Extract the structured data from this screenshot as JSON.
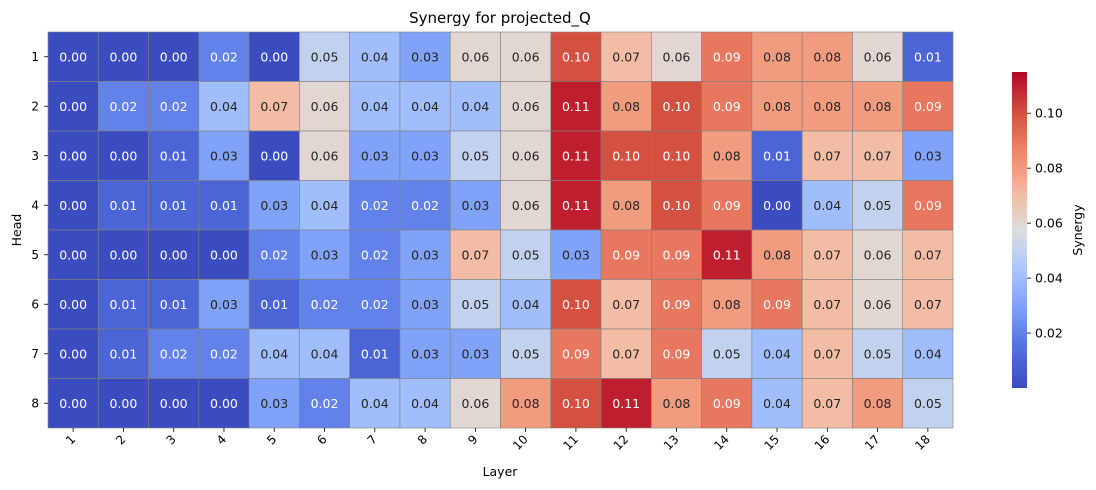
{
  "chart_data": {
    "type": "heatmap",
    "title": "Synergy for projected_Q",
    "xlabel": "Layer",
    "ylabel": "Head",
    "x_categories": [
      "1",
      "2",
      "3",
      "4",
      "5",
      "6",
      "7",
      "8",
      "9",
      "10",
      "11",
      "12",
      "13",
      "14",
      "15",
      "16",
      "17",
      "18"
    ],
    "y_categories": [
      "1",
      "2",
      "3",
      "4",
      "5",
      "6",
      "7",
      "8"
    ],
    "values": [
      [
        0.0,
        0.0,
        0.0,
        0.02,
        0.0,
        0.05,
        0.04,
        0.03,
        0.06,
        0.06,
        0.1,
        0.07,
        0.06,
        0.09,
        0.08,
        0.08,
        0.06,
        0.01
      ],
      [
        0.0,
        0.02,
        0.02,
        0.04,
        0.07,
        0.06,
        0.04,
        0.04,
        0.04,
        0.06,
        0.11,
        0.08,
        0.1,
        0.09,
        0.08,
        0.08,
        0.08,
        0.09
      ],
      [
        0.0,
        0.0,
        0.01,
        0.03,
        0.0,
        0.06,
        0.03,
        0.03,
        0.05,
        0.06,
        0.11,
        0.1,
        0.1,
        0.08,
        0.01,
        0.07,
        0.07,
        0.03
      ],
      [
        0.0,
        0.01,
        0.01,
        0.01,
        0.03,
        0.04,
        0.02,
        0.02,
        0.03,
        0.06,
        0.11,
        0.08,
        0.1,
        0.09,
        0.0,
        0.04,
        0.05,
        0.09
      ],
      [
        0.0,
        0.0,
        0.0,
        0.0,
        0.02,
        0.03,
        0.02,
        0.03,
        0.07,
        0.05,
        0.03,
        0.09,
        0.09,
        0.11,
        0.08,
        0.07,
        0.06,
        0.07
      ],
      [
        0.0,
        0.01,
        0.01,
        0.03,
        0.01,
        0.02,
        0.02,
        0.03,
        0.05,
        0.04,
        0.1,
        0.07,
        0.09,
        0.08,
        0.09,
        0.07,
        0.06,
        0.07
      ],
      [
        0.0,
        0.01,
        0.02,
        0.02,
        0.04,
        0.04,
        0.01,
        0.03,
        0.03,
        0.05,
        0.09,
        0.07,
        0.09,
        0.05,
        0.04,
        0.07,
        0.05,
        0.04
      ],
      [
        0.0,
        0.0,
        0.0,
        0.0,
        0.03,
        0.02,
        0.04,
        0.04,
        0.06,
        0.08,
        0.1,
        0.11,
        0.08,
        0.09,
        0.04,
        0.07,
        0.08,
        0.05
      ]
    ],
    "value_format": "0.00",
    "colormap": "coolwarm",
    "vmin": 0.0,
    "vmax": 0.115,
    "colorbar": {
      "label": "Synergy",
      "ticks": [
        0.02,
        0.04,
        0.06,
        0.08,
        0.1
      ],
      "tick_labels": [
        "0.02",
        "0.04",
        "0.06",
        "0.08",
        "0.10"
      ]
    },
    "cell_border_color": "#808080",
    "legend": "right"
  }
}
